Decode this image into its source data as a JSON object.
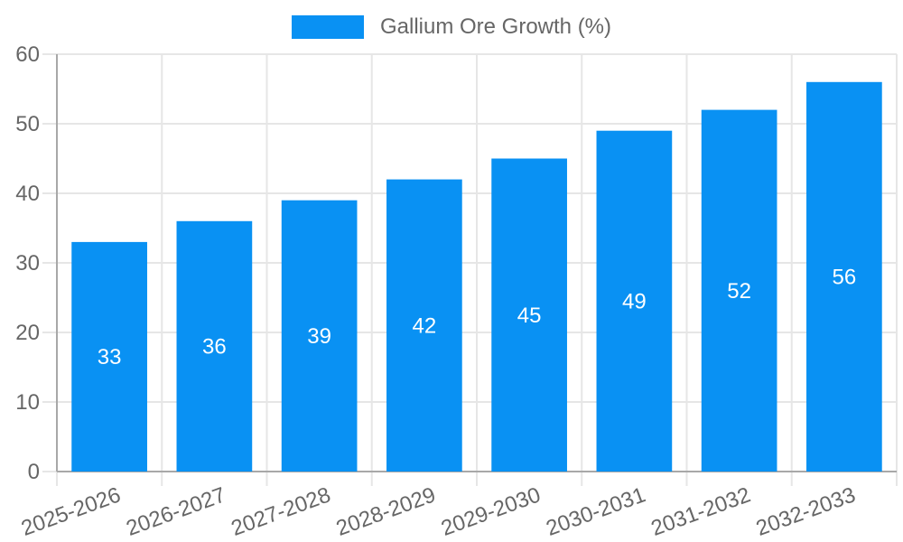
{
  "legend": {
    "label": "Gallium Ore Growth (%)"
  },
  "chart_data": {
    "type": "bar",
    "title": "",
    "series_name": "Gallium Ore Growth (%)",
    "categories": [
      "2025-2026",
      "2026-2027",
      "2027-2028",
      "2028-2029",
      "2029-2030",
      "2030-2031",
      "2031-2032",
      "2032-2033"
    ],
    "values": [
      33,
      36,
      39,
      42,
      45,
      49,
      52,
      56
    ],
    "value_labels": [
      "33",
      "36",
      "39",
      "42",
      "45",
      "49",
      "52",
      "56"
    ],
    "xlabel": "",
    "ylabel": "",
    "ylim": [
      0,
      60
    ],
    "yticks": [
      0,
      10,
      20,
      30,
      40,
      50,
      60
    ],
    "ytick_labels": [
      "0",
      "10",
      "20",
      "30",
      "40",
      "50",
      "60"
    ],
    "grid": true,
    "legend_position": "top",
    "x_label_rotation_deg": -20,
    "colors": {
      "bar": "#0991f3",
      "value_label": "#ffffff",
      "tick_label": "#666666",
      "grid": "#e6e6e6",
      "axis": "#a8a8a8",
      "background": "#ffffff"
    }
  }
}
